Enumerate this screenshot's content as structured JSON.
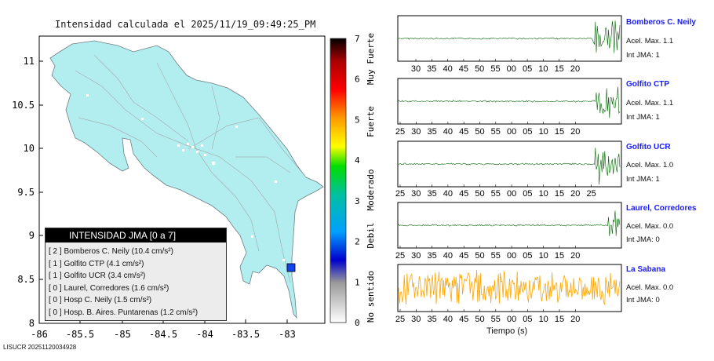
{
  "map": {
    "title": "Intensidad calculada el 2025/11/19_09:49:25_PM",
    "lat_ticks": [
      "11",
      "10.5",
      "10",
      "9.5",
      "9",
      "8.5",
      "8"
    ],
    "lon_ticks": [
      "-86",
      "-85.5",
      "-85",
      "-84.5",
      "-84",
      "-83.5",
      "-83"
    ],
    "land_color": "#b2eef0",
    "station_marker_color": "#1144ee"
  },
  "legend": {
    "header": "INTENSIDAD JMA [0 a 7]",
    "rows": [
      "[ 2 ]  Bomberos C. Neily (10.4 cm/s²)",
      "[ 1 ]  Golfito CTP (4.1 cm/s²)",
      "[ 1 ]  Golfito UCR (3.4 cm/s²)",
      "[ 0 ]  Laurel, Corredores (1.6 cm/s²)",
      "[ 0 ]  Hosp C. Neily (1.5 cm/s²)",
      "[ 0 ]  Hosp. B. Aires. Puntarenas (1.2 cm/s²)"
    ]
  },
  "colorbar": {
    "ticks": [
      "7",
      "6",
      "5",
      "4",
      "3",
      "2",
      "1",
      "0"
    ],
    "labels": [
      "Muy Fuerte",
      "Fuerte",
      "Moderado",
      "Debil",
      "No sentido"
    ]
  },
  "traces": [
    {
      "name": "Bomberos C. Neily",
      "acel": "Acel. Max. 1.1",
      "int": "Int JMA: 1",
      "color": "#006400",
      "ticks": [
        "30",
        "35",
        "40",
        "45",
        "50",
        "55",
        "00",
        "05",
        "10",
        "15",
        "20"
      ]
    },
    {
      "name": "Golfito CTP",
      "acel": "Acel. Max. 1.1",
      "int": "Int JMA: 1",
      "color": "#006400",
      "ticks": [
        "25",
        "30",
        "35",
        "40",
        "45",
        "50",
        "55",
        "00",
        "05",
        "10",
        "15",
        "20"
      ]
    },
    {
      "name": "Golfito UCR",
      "acel": "Acel. Max. 1.0",
      "int": "Int JMA: 1",
      "color": "#006400",
      "ticks": [
        "25",
        "30",
        "35",
        "40",
        "45",
        "50",
        "55",
        "00",
        "05",
        "10",
        "15",
        "20",
        "25"
      ]
    },
    {
      "name": "Laurel, Corredores",
      "acel": "Acel. Max. 0.0",
      "int": "Int JMA: 0",
      "color": "#006400",
      "ticks": [
        "25",
        "30",
        "35",
        "40",
        "45",
        "50",
        "55",
        "00",
        "05",
        "10",
        "15",
        "20"
      ]
    },
    {
      "name": "La Sabana",
      "acel": "Acel. Max. 0.0",
      "int": "Int JMA: 0",
      "color": "#ffa500",
      "ticks": [
        "25",
        "30",
        "35",
        "40",
        "45",
        "50",
        "55",
        "00",
        "05",
        "10",
        "15",
        "20"
      ]
    }
  ],
  "xaxis_title": "Tiempo (s)",
  "footer_id": "LISUCR 20251120034928"
}
